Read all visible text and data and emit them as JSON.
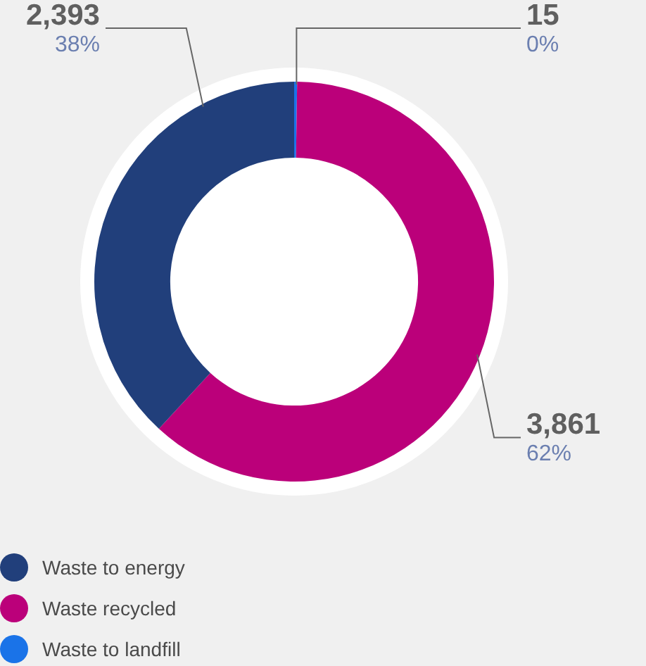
{
  "chart_data": {
    "type": "donut",
    "categories": [
      "Waste to landfill",
      "Waste recycled",
      "Waste to energy"
    ],
    "values": [
      15,
      3861,
      2393
    ],
    "colors": [
      "#1a73e8",
      "#bb007a",
      "#213f7b"
    ],
    "value_labels": [
      "15",
      "3,861",
      "2,393"
    ],
    "annotations": [
      "0%",
      "62%",
      "38%"
    ],
    "legend": "bottom left"
  }
}
